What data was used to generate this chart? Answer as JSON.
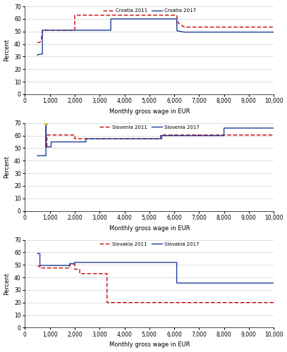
{
  "charts": [
    {
      "title": "Croatia",
      "legend_2011": "Croatia 2011",
      "legend_2017": "Croatia 2017",
      "line_2011": {
        "x": [
          500,
          600,
          650,
          700,
          2000,
          2001,
          6100,
          6150,
          6400,
          10000
        ],
        "y": [
          41.0,
          41.5,
          42.5,
          51.0,
          51.0,
          63.0,
          63.0,
          57.0,
          53.5,
          53.5
        ]
      },
      "line_2017": {
        "x": [
          500,
          510,
          700,
          701,
          3450,
          3451,
          6100,
          6110,
          6400,
          10000
        ],
        "y": [
          31.0,
          31.5,
          32.0,
          51.0,
          51.0,
          60.0,
          60.0,
          50.5,
          49.5,
          49.5
        ]
      }
    },
    {
      "title": "Slovenia",
      "legend_2011": "Slovenia 2011",
      "legend_2017": "Slovenia 2017",
      "line_2011": {
        "x": [
          880,
          881,
          2000,
          2001,
          5500,
          5501,
          10000
        ],
        "y": [
          51.0,
          60.5,
          60.5,
          57.5,
          57.5,
          60.5,
          60.5
        ]
      },
      "line_2017": {
        "x": [
          500,
          840,
          841,
          842,
          843,
          844,
          845,
          846,
          847,
          848,
          849,
          850,
          1050,
          1051,
          2450,
          2451,
          5450,
          5451,
          8000,
          8001,
          10000
        ],
        "y": [
          44.0,
          44.0,
          44.5,
          70.0,
          70.0,
          70.0,
          70.0,
          70.0,
          70.0,
          70.0,
          70.0,
          51.0,
          51.0,
          55.0,
          55.0,
          57.5,
          57.5,
          60.0,
          60.0,
          66.0,
          66.0
        ]
      },
      "diamonds_2017": {
        "x": [
          843,
          844,
          845,
          846,
          847,
          848,
          849
        ],
        "y": [
          70.0,
          70.0,
          70.0,
          70.0,
          70.0,
          70.0,
          70.0
        ]
      }
    },
    {
      "title": "Slovakia",
      "legend_2011": "Slovakia 2011",
      "legend_2017": "Slovakia 2017",
      "line_2011": {
        "x": [
          500,
          501,
          600,
          601,
          1800,
          1801,
          2000,
          2001,
          2200,
          2201,
          3300,
          3301,
          10000
        ],
        "y": [
          49.0,
          49.0,
          49.0,
          47.5,
          47.5,
          50.5,
          50.5,
          46.5,
          46.5,
          43.0,
          43.0,
          20.0,
          20.0
        ]
      },
      "line_2017": {
        "x": [
          500,
          501,
          600,
          601,
          1800,
          1801,
          2000,
          2001,
          6100,
          6101,
          10000
        ],
        "y": [
          59.0,
          59.0,
          59.0,
          49.5,
          49.5,
          51.0,
          51.0,
          52.0,
          52.0,
          35.5,
          35.5
        ]
      }
    }
  ],
  "color_2011": "#cc0000",
  "color_2017": "#1f3f9c",
  "xlim": [
    0,
    10000
  ],
  "ylim": [
    0,
    70
  ],
  "yticks": [
    0,
    10,
    20,
    30,
    40,
    50,
    60,
    70
  ],
  "xticks": [
    0,
    1000,
    2000,
    3000,
    4000,
    5000,
    6000,
    7000,
    8000,
    9000,
    10000
  ],
  "xlabel": "Monthly gross wage in EUR",
  "ylabel": "Percent",
  "grid_color": "#d0d0d0",
  "bg_color": "#ffffff",
  "linewidth": 1.0,
  "dash_pattern": [
    4,
    2
  ]
}
